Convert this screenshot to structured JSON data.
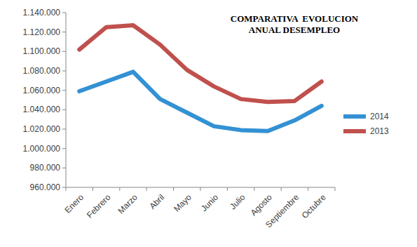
{
  "chart_data": {
    "type": "line",
    "title": "COMPARATIVA  EVOLUCION ANUAL DESEMPLEO",
    "categories": [
      "Enero",
      "Febrero",
      "Marzo",
      "Abril",
      "Mayo",
      "Junio",
      "Julio",
      "Agosto",
      "Septiembre",
      "Octubre"
    ],
    "series": [
      {
        "name": "2014",
        "color": "#3391d4",
        "values": [
          1059000,
          1069000,
          1079000,
          1051000,
          1037000,
          1023000,
          1019000,
          1018000,
          1029000,
          1044000
        ]
      },
      {
        "name": "2013",
        "color": "#c0504d",
        "values": [
          1102000,
          1125000,
          1127000,
          1107000,
          1081000,
          1064000,
          1051000,
          1048000,
          1049000,
          1069000
        ]
      }
    ],
    "ylim": [
      960000,
      1140000
    ],
    "yticks": [
      {
        "value": 960000,
        "label": "960.000"
      },
      {
        "value": 980000,
        "label": "980.000"
      },
      {
        "value": 1000000,
        "label": "1.000.000"
      },
      {
        "value": 1020000,
        "label": "1.020.000"
      },
      {
        "value": 1040000,
        "label": "1.040.000"
      },
      {
        "value": 1060000,
        "label": "1.060.000"
      },
      {
        "value": 1080000,
        "label": "1.080.000"
      },
      {
        "value": 1100000,
        "label": "1.100.000"
      },
      {
        "value": 1120000,
        "label": "1.120.000"
      },
      {
        "value": 1140000,
        "label": "1.140.000"
      }
    ],
    "grid": false,
    "legend": "right"
  }
}
